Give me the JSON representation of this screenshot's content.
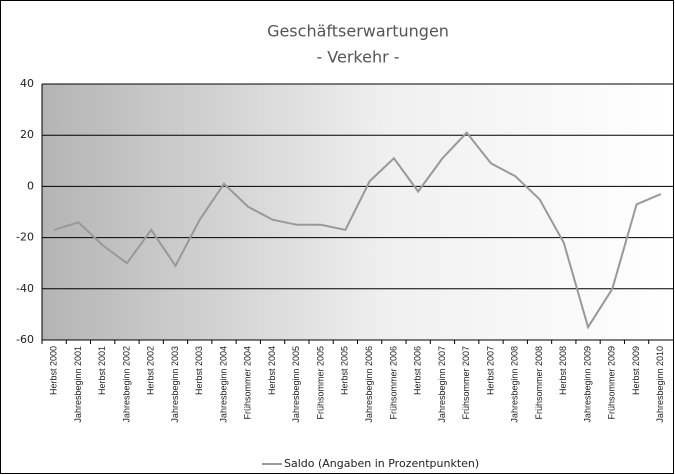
{
  "chart_data": {
    "type": "line",
    "title": "Geschäftserwartungen",
    "subtitle": "- Verkehr -",
    "categories": [
      "Herbst 2000",
      "Jahresbeginn 2001",
      "Herbst 2001",
      "Jahresbeginn 2002",
      "Herbst 2002",
      "Jahresbeginn 2003",
      "Herbst 2003",
      "Jahresbeginn 2004",
      "Frühsommer 2004",
      "Herbst 2004",
      "Jahresbeginn 2005",
      "Frühsommer 2005",
      "Herbst 2005",
      "Jahresbeginn 2006",
      "Frühsommer 2006",
      "Herbst 2006",
      "Jahresbeginn 2007",
      "Frühsommer 2007",
      "Herbst 2007",
      "Jahresbeginn 2008",
      "Frühsommer 2008",
      "Herbst 2008",
      "Jahresbeginn 2009",
      "Frühsommer 2009",
      "Herbst 2009",
      "Jahresbeginn 2010"
    ],
    "series": [
      {
        "name": "Saldo (Angaben in Prozentpunkten)",
        "color": "#999999",
        "values": [
          -17,
          -14,
          -23,
          -30,
          -17,
          -31,
          -13,
          1,
          -8,
          -13,
          -15,
          -15,
          -17,
          2,
          11,
          -2,
          11,
          21,
          9,
          4,
          -5,
          -22,
          -55,
          -40,
          -7,
          -3
        ]
      }
    ],
    "ylim": [
      -60,
      40
    ],
    "yticks": [
      -60,
      -40,
      -20,
      0,
      20,
      40
    ],
    "grid": true,
    "legend": "bottom"
  }
}
